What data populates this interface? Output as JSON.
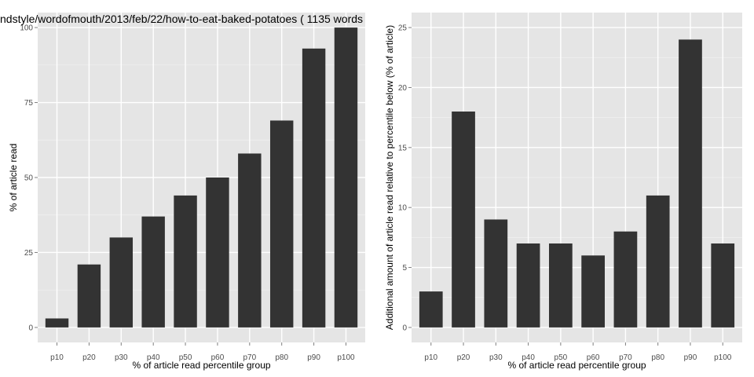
{
  "chart_data": [
    {
      "type": "bar",
      "title": "ndstyle/wordofmouth/2013/feb/22/how-to-eat-baked-potatoes ( 1135 words",
      "xlabel": "% of article read percentile group",
      "ylabel": "% of article read",
      "categories": [
        "p10",
        "p20",
        "p30",
        "p40",
        "p50",
        "p60",
        "p70",
        "p80",
        "p90",
        "p100"
      ],
      "values": [
        3,
        21,
        30,
        37,
        44,
        50,
        58,
        69,
        93,
        100
      ],
      "ylim": [
        0,
        100
      ],
      "yticks": [
        0,
        25,
        50,
        75,
        100
      ],
      "grid": true,
      "bar_color": "#333333",
      "panel_background": "#e5e5e5",
      "grid_color": "#ffffff"
    },
    {
      "type": "bar",
      "title": "",
      "xlabel": "% of article read percentile group",
      "ylabel": "Additional amount of article read relative to percentile below (% of article)",
      "categories": [
        "p10",
        "p20",
        "p30",
        "p40",
        "p50",
        "p60",
        "p70",
        "p80",
        "p90",
        "p100"
      ],
      "values": [
        3,
        18,
        9,
        7,
        7,
        6,
        8,
        11,
        24,
        7
      ],
      "ylim": [
        0,
        25
      ],
      "yticks": [
        0,
        5,
        10,
        15,
        20,
        25
      ],
      "grid": true,
      "bar_color": "#333333",
      "panel_background": "#e5e5e5",
      "grid_color": "#ffffff"
    }
  ]
}
